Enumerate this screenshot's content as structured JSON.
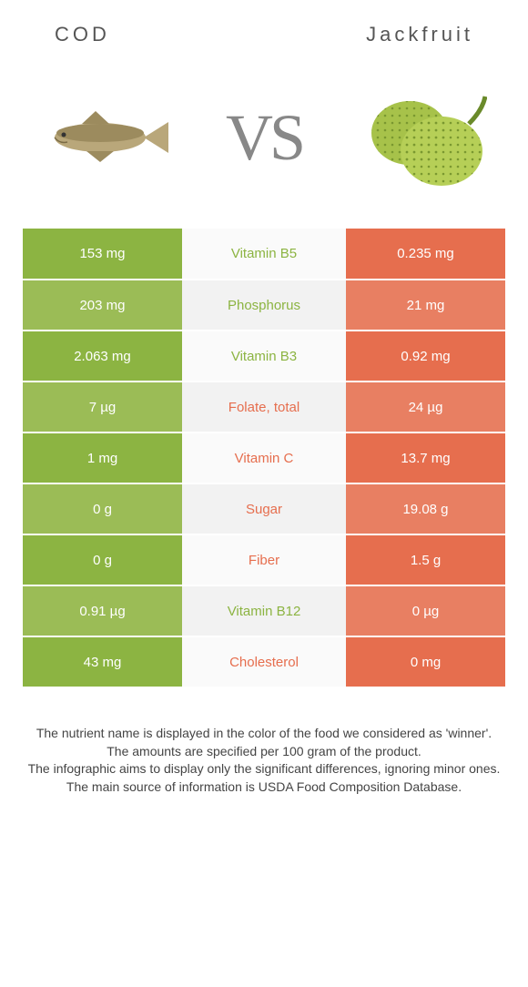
{
  "colors": {
    "cod": "#8cb442",
    "cod_alt": "#9bbc56",
    "jack": "#e66e4e",
    "jack_alt": "#e87f62",
    "mid_bg": "#fafafa",
    "mid_alt": "#f2f2f2"
  },
  "header": {
    "left": "COD",
    "right": "Jackfruit"
  },
  "vs": "VS",
  "rows": [
    {
      "left": "153 mg",
      "mid": "Vitamin B5",
      "right": "0.235 mg",
      "winner": "cod"
    },
    {
      "left": "203 mg",
      "mid": "Phosphorus",
      "right": "21 mg",
      "winner": "cod"
    },
    {
      "left": "2.063 mg",
      "mid": "Vitamin B3",
      "right": "0.92 mg",
      "winner": "cod"
    },
    {
      "left": "7 µg",
      "mid": "Folate, total",
      "right": "24 µg",
      "winner": "jack"
    },
    {
      "left": "1 mg",
      "mid": "Vitamin C",
      "right": "13.7 mg",
      "winner": "jack"
    },
    {
      "left": "0 g",
      "mid": "Sugar",
      "right": "19.08 g",
      "winner": "jack"
    },
    {
      "left": "0 g",
      "mid": "Fiber",
      "right": "1.5 g",
      "winner": "jack"
    },
    {
      "left": "0.91 µg",
      "mid": "Vitamin B12",
      "right": "0 µg",
      "winner": "cod"
    },
    {
      "left": "43 mg",
      "mid": "Cholesterol",
      "right": "0 mg",
      "winner": "jack"
    }
  ],
  "footer": [
    "The nutrient name is displayed in the color of the food we considered as 'winner'.",
    "The amounts are specified per 100 gram of the product.",
    "The infographic aims to display only the significant differences, ignoring minor ones.",
    "The main source of information is USDA Food Composition Database."
  ]
}
